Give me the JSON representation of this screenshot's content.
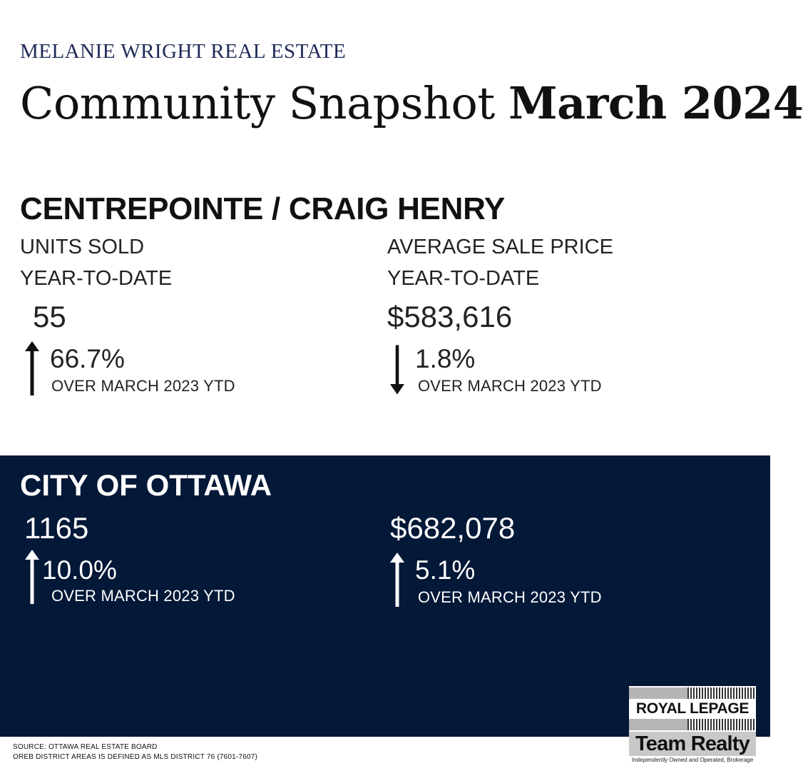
{
  "header": {
    "brand": "MELANIE WRIGHT REAL ESTATE",
    "title_light": "Community Snapshot ",
    "title_bold": "March 2024"
  },
  "community": {
    "name": "CENTREPOINTE / CRAIG HENRY",
    "units": {
      "label": "UNITS SOLD",
      "period": "YEAR-TO-DATE",
      "value": "55",
      "change": "66.7%",
      "direction": "up",
      "comparison": "OVER MARCH 2023 YTD"
    },
    "price": {
      "label": "AVERAGE SALE PRICE",
      "period": "YEAR-TO-DATE",
      "value": "$583,616",
      "change": "1.8%",
      "direction": "down",
      "comparison": "OVER MARCH 2023 YTD"
    }
  },
  "city": {
    "name": "CITY OF OTTAWA",
    "units": {
      "value": "1165",
      "change": "10.0%",
      "direction": "up",
      "comparison": "OVER MARCH 2023 YTD"
    },
    "price": {
      "value": "$682,078",
      "change": "5.1%",
      "direction": "up",
      "comparison": "OVER MARCH 2023 YTD"
    }
  },
  "footer": {
    "source": "SOURCE: OTTAWA REAL ESTATE BOARD",
    "district_note": "OREB DISTRICT AREAS IS DEFINED AS MLS DISTRICT 76 (7601-7607)"
  },
  "logo": {
    "name": "ROYAL LEPAGE",
    "team": "Team Realty",
    "tagline": "Independently Owned and Operated, Brokerage"
  },
  "colors": {
    "navy_panel": "#041837",
    "brand_navy": "#1e2a57",
    "text": "#111111"
  },
  "icons": {
    "up": "arrow-up-icon",
    "down": "arrow-down-icon"
  }
}
